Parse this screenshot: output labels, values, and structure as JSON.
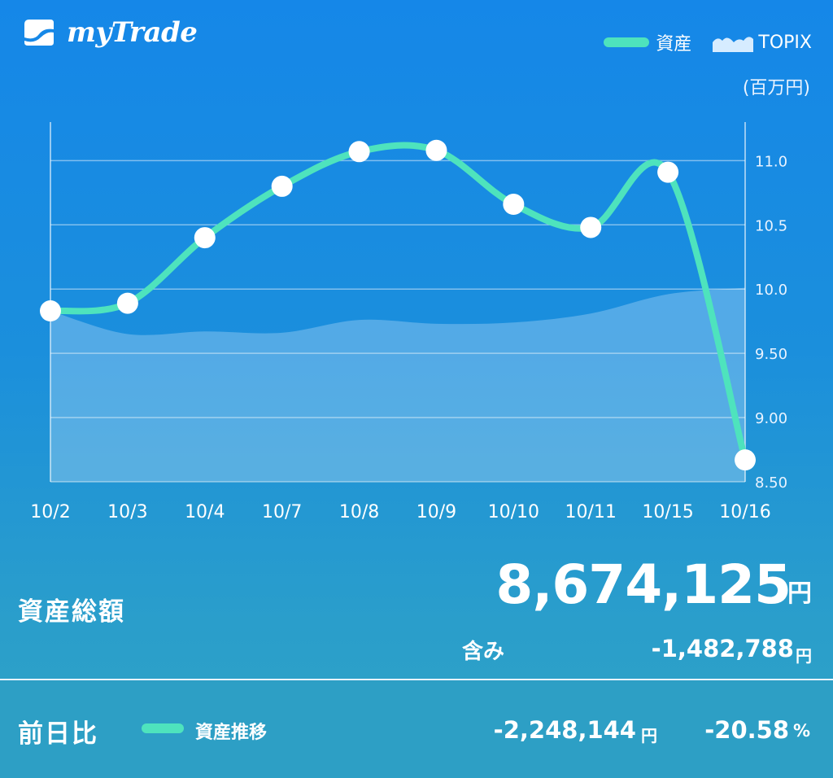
{
  "header": {
    "app_name": "myTrade",
    "logo_icon": "trend-icon",
    "legend": [
      {
        "label": "資産",
        "swatch": "line",
        "color": "#4ee3bd"
      },
      {
        "label": "TOPIX",
        "swatch": "area",
        "color": "#d6ecff"
      }
    ],
    "unit_label": "(百万円)"
  },
  "chart_data": {
    "type": "line",
    "categories": [
      "10/2",
      "10/3",
      "10/4",
      "10/7",
      "10/8",
      "10/9",
      "10/10",
      "10/11",
      "10/15",
      "10/16"
    ],
    "series": [
      {
        "name": "資産",
        "type": "line",
        "color": "#4ee3bd",
        "values": [
          9.83,
          9.89,
          10.4,
          10.8,
          11.07,
          11.08,
          10.66,
          10.48,
          10.91,
          8.67
        ]
      },
      {
        "name": "TOPIX",
        "type": "area",
        "color": "#d6ecff",
        "values": [
          9.83,
          9.65,
          9.67,
          9.66,
          9.76,
          9.73,
          9.74,
          9.81,
          9.96,
          10.01
        ]
      }
    ],
    "y_ticks": [
      "8.50",
      "9.00",
      "9.50",
      "10.0",
      "10.5",
      "11.0"
    ],
    "ylim": [
      8.5,
      11.3
    ],
    "grid": true
  },
  "summary": {
    "total_label": "資産総額",
    "total_value": "8,674,125",
    "total_unit": "円",
    "included_label": "含み",
    "included_value": "-1,482,788",
    "included_unit": "円"
  },
  "footer": {
    "label": "前日比",
    "legend_label": "資産推移",
    "diff_value": "-2,248,144",
    "diff_unit": "円",
    "pct_value": "-20.58",
    "pct_unit": "%"
  }
}
